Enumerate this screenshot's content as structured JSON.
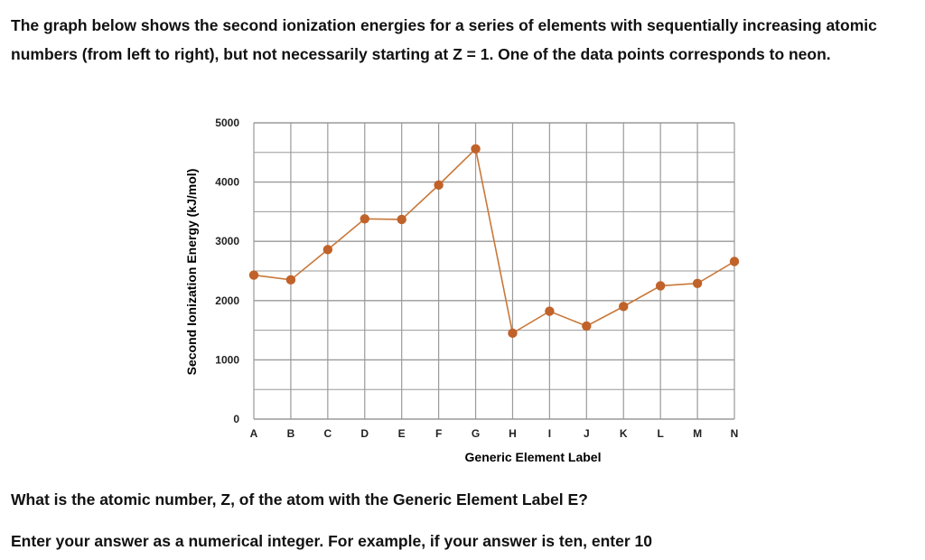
{
  "intro_text": "The graph below shows the second ionization energies for a series of elements with sequentially increasing atomic numbers (from left to right), but not necessarily starting at Z = 1. One of the data points corresponds to neon.",
  "question_text": "What is the atomic number, Z, of the atom with the Generic Element Label E?",
  "instruction_text": "Enter your answer as a numerical integer. For example, if your answer is ten, enter 10",
  "chart_data": {
    "type": "line",
    "title": "",
    "xlabel": "Generic Element Label",
    "ylabel": "Second Ionization Energy (kJ/mol)",
    "categories": [
      "A",
      "B",
      "C",
      "D",
      "E",
      "F",
      "G",
      "H",
      "I",
      "J",
      "K",
      "L",
      "M",
      "N"
    ],
    "series": [
      {
        "values": [
          2430,
          2350,
          2860,
          3380,
          3370,
          3950,
          4560,
          1450,
          1820,
          1570,
          1900,
          2250,
          2290,
          2660
        ]
      }
    ],
    "ylim": [
      0,
      5000
    ],
    "yticks": [
      0,
      1000,
      2000,
      3000,
      4000,
      5000
    ],
    "grid": true,
    "legend": "none",
    "colors": {
      "line": "#c8783a",
      "marker": "#c0622a",
      "grid": "#9a9a9a"
    }
  }
}
